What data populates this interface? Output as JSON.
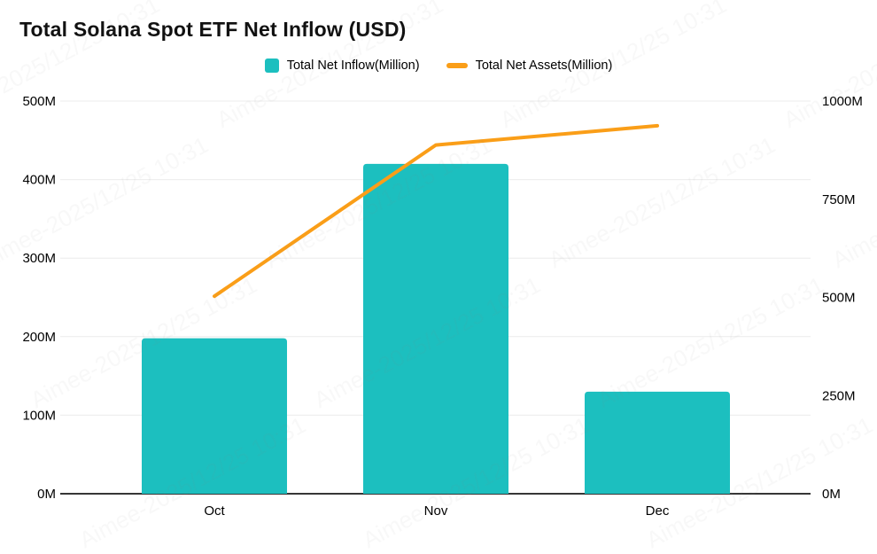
{
  "title": "Total Solana Spot ETF Net Inflow (USD)",
  "watermark": "Aimee-2025/12/25 10:31",
  "legend": {
    "items": [
      {
        "label": "Total Net Inflow(Million)",
        "marker": "square",
        "color": "#1CBFBF"
      },
      {
        "label": "Total Net Assets(Million)",
        "marker": "dash",
        "color": "#FA9E18"
      }
    ]
  },
  "chart_data": {
    "type": "bar",
    "subtype": "bar+line dual axis combo",
    "title": "Total Solana Spot ETF Net Inflow (USD)",
    "categories": [
      "Oct",
      "Nov",
      "Dec"
    ],
    "series": [
      {
        "name": "Total Net Inflow(Million)",
        "type": "bar",
        "axis": "left",
        "color": "#1CBFBF",
        "values": [
          198,
          420,
          130
        ]
      },
      {
        "name": "Total Net Assets(Million)",
        "type": "line",
        "axis": "right",
        "color": "#FA9E18",
        "values": [
          503,
          888,
          937
        ]
      }
    ],
    "left_axis": {
      "min": 0,
      "max": 500,
      "step": 100,
      "unit": "M",
      "tick_labels": [
        "0M",
        "100M",
        "200M",
        "300M",
        "400M",
        "500M"
      ]
    },
    "right_axis": {
      "min": 0,
      "max": 1000,
      "step": 250,
      "unit": "M",
      "tick_labels": [
        "0M",
        "250M",
        "500M",
        "750M",
        "1000M"
      ]
    },
    "grid": true,
    "legend_position": "top",
    "grid_color": "#ececec",
    "axis_line_color": "#1a1a1a",
    "text_color": "#000000"
  }
}
